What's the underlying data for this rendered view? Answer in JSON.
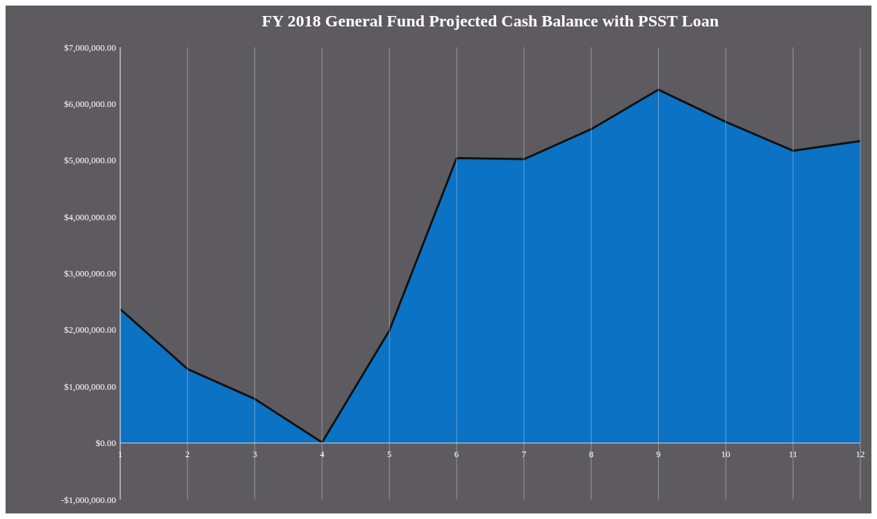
{
  "chart_data": {
    "type": "area",
    "title": "FY 2018 General Fund Projected Cash Balance with PSST Loan",
    "categories": [
      "1",
      "2",
      "3",
      "4",
      "5",
      "6",
      "7",
      "8",
      "9",
      "10",
      "11",
      "12"
    ],
    "series": [
      {
        "color": "#0b72c4",
        "values": [
          2370000,
          1310000,
          780000,
          10000,
          1990000,
          5040000,
          5020000,
          5550000,
          6250000,
          5680000,
          5170000,
          5340000
        ]
      }
    ],
    "ylim": [
      -1000000,
      7000000
    ],
    "yticks": [
      {
        "value": -1000000,
        "label": "-$1,000,000.00"
      },
      {
        "value": 0,
        "label": "$0.00"
      },
      {
        "value": 1000000,
        "label": "$1,000,000.00"
      },
      {
        "value": 2000000,
        "label": "$2,000,000.00"
      },
      {
        "value": 3000000,
        "label": "$3,000,000.00"
      },
      {
        "value": 4000000,
        "label": "$4,000,000.00"
      },
      {
        "value": 5000000,
        "label": "$5,000,000.00"
      },
      {
        "value": 6000000,
        "label": "$6,000,000.00"
      },
      {
        "value": 7000000,
        "label": "$7,000,000.00"
      }
    ],
    "grid": "x"
  }
}
